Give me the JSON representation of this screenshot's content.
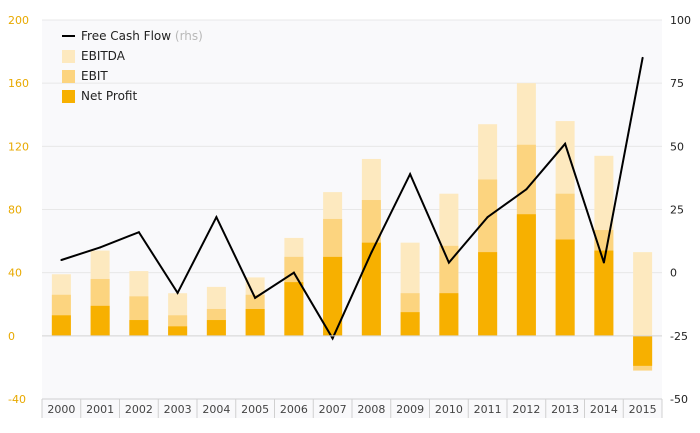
{
  "chart_data": {
    "type": "bar",
    "categories": [
      "2000",
      "2001",
      "2002",
      "2003",
      "2004",
      "2005",
      "2006",
      "2007",
      "2008",
      "2009",
      "2010",
      "2011",
      "2012",
      "2013",
      "2014",
      "2015"
    ],
    "series": [
      {
        "name": "EBITDA",
        "kind": "bar",
        "axis": "left",
        "color": "#fde9bf",
        "values": [
          39,
          54,
          41,
          27,
          31,
          37,
          62,
          91,
          112,
          59,
          90,
          134,
          160,
          136,
          114,
          53
        ]
      },
      {
        "name": "EBIT",
        "kind": "bar",
        "axis": "left",
        "color": "#fcd47f",
        "values": [
          26,
          36,
          25,
          13,
          17,
          26,
          50,
          74,
          86,
          27,
          57,
          99,
          121,
          90,
          67,
          -22
        ]
      },
      {
        "name": "Net Profit",
        "kind": "bar",
        "axis": "left",
        "color": "#f7b000",
        "values": [
          13,
          19,
          10,
          6,
          10,
          17,
          34,
          50,
          59,
          15,
          27,
          53,
          77,
          61,
          54,
          -19
        ]
      },
      {
        "name": "Free Cash Flow",
        "name_suffix": "(rhs)",
        "kind": "line",
        "axis": "right",
        "color": "#000000",
        "values": [
          5,
          10,
          16,
          -8,
          22,
          -10,
          0,
          -26,
          8,
          39,
          4,
          22,
          33,
          51,
          4,
          85
        ]
      }
    ],
    "y_left": {
      "min": -40,
      "max": 200,
      "ticks": [
        -40,
        0,
        40,
        80,
        120,
        160,
        200
      ],
      "color": "#e8a900"
    },
    "y_right": {
      "min": -50,
      "max": 100,
      "ticks": [
        -50,
        -25,
        0,
        25,
        50,
        75,
        100
      ],
      "color": "#222222"
    },
    "legend": {
      "position": "top-left",
      "order": [
        "Free Cash Flow",
        "EBITDA",
        "EBIT",
        "Net Profit"
      ]
    },
    "grid": {
      "horizontal": true,
      "color": "#e8e8e8"
    },
    "plot_background": "#f9f9fb"
  }
}
